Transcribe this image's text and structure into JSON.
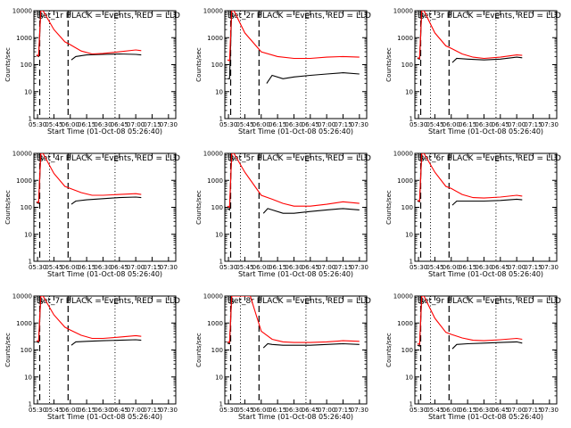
{
  "colors": {
    "events": "#000000",
    "lld": "#ff0000",
    "axis": "#000000",
    "background": "#ffffff"
  },
  "chart_data": {
    "type": "line",
    "yscale": "log",
    "ylim": [
      1,
      10000
    ],
    "xlim": [
      "05:26:40",
      "07:36:40"
    ],
    "xlabel": "Start Time (01-Oct-08 05:26:40)",
    "ylabel": "Counts/sec",
    "xticks": [
      "05:30",
      "05:45",
      "06:00",
      "06:15",
      "06:30",
      "06:45",
      "07:00",
      "07:15",
      "07:30"
    ],
    "yticks": [
      "1",
      "10",
      "100",
      "1000",
      "10000"
    ],
    "legend_text": "BLACK = Events, RED = LLD",
    "markers": {
      "dashed": [
        "05:32",
        "05:58"
      ],
      "dotted": [
        "05:41",
        "06:41"
      ],
      "labels": [
        {
          "text": "S",
          "at": "05:33"
        },
        {
          "text": "E",
          "at": "06:42"
        }
      ]
    },
    "panels": [
      {
        "title": "Det_1r BLACK = Events, RED = LLD",
        "series": [
          {
            "name": "Events",
            "color": "#000000",
            "x": [
              "05:29",
              "05:31",
              "05:33",
              "05:35",
              "06:00",
              "06:01",
              "06:05",
              "06:15",
              "06:30",
              "06:45",
              "07:00",
              "07:05"
            ],
            "y": [
              220,
              200,
              10000,
              10000,
              null,
              150,
              200,
              230,
              240,
              250,
              240,
              230
            ]
          },
          {
            "name": "LLD",
            "color": "#ff0000",
            "x": [
              "05:29",
              "05:31",
              "05:33",
              "05:35",
              "05:45",
              "05:55",
              "06:00",
              "06:10",
              "06:20",
              "06:30",
              "06:45",
              "07:00",
              "07:05"
            ],
            "y": [
              230,
              210,
              10000,
              10000,
              2000,
              700,
              550,
              320,
              250,
              260,
              300,
              350,
              330
            ]
          }
        ]
      },
      {
        "title": "Det_2r BLACK = Events, RED = LLD",
        "series": [
          {
            "name": "Events",
            "color": "#000000",
            "x": [
              "05:29",
              "05:31",
              "05:33",
              "05:35",
              "06:00",
              "06:05",
              "06:10",
              "06:20",
              "06:30",
              "06:45",
              "07:00",
              "07:15",
              "07:30"
            ],
            "y": [
              30,
              30,
              10000,
              10000,
              null,
              20,
              40,
              30,
              35,
              40,
              45,
              50,
              45
            ]
          },
          {
            "name": "LLD",
            "color": "#ff0000",
            "x": [
              "05:29",
              "05:31",
              "05:33",
              "05:35",
              "05:45",
              "06:00",
              "06:15",
              "06:30",
              "06:45",
              "07:00",
              "07:15",
              "07:30"
            ],
            "y": [
              150,
              140,
              10000,
              10000,
              1500,
              300,
              200,
              170,
              170,
              190,
              200,
              190
            ]
          }
        ]
      },
      {
        "title": "Det_3r BLACK = Events, RED = LLD",
        "series": [
          {
            "name": "Events",
            "color": "#000000",
            "x": [
              "05:29",
              "05:31",
              "05:33",
              "05:35",
              "06:00",
              "06:01",
              "06:05",
              "06:15",
              "06:30",
              "06:45",
              "07:00",
              "07:05"
            ],
            "y": [
              170,
              160,
              10000,
              10000,
              null,
              120,
              170,
              160,
              150,
              160,
              190,
              180
            ]
          },
          {
            "name": "LLD",
            "color": "#ff0000",
            "x": [
              "05:29",
              "05:31",
              "05:33",
              "05:35",
              "05:45",
              "05:55",
              "06:00",
              "06:10",
              "06:20",
              "06:30",
              "06:45",
              "07:00",
              "07:05"
            ],
            "y": [
              180,
              170,
              10000,
              10000,
              1500,
              500,
              400,
              250,
              190,
              170,
              190,
              230,
              220
            ]
          }
        ]
      },
      {
        "title": "Det_4r BLACK = Events, RED = LLD",
        "series": [
          {
            "name": "Events",
            "color": "#000000",
            "x": [
              "05:29",
              "05:31",
              "05:33",
              "05:35",
              "06:00",
              "06:01",
              "06:05",
              "06:15",
              "06:30",
              "06:45",
              "07:00",
              "07:05"
            ],
            "y": [
              150,
              140,
              10000,
              10000,
              null,
              130,
              170,
              190,
              210,
              230,
              240,
              230
            ]
          },
          {
            "name": "LLD",
            "color": "#ff0000",
            "x": [
              "05:29",
              "05:31",
              "05:33",
              "05:35",
              "05:45",
              "05:55",
              "06:00",
              "06:10",
              "06:20",
              "06:30",
              "06:45",
              "07:00",
              "07:05"
            ],
            "y": [
              160,
              150,
              10000,
              10000,
              1800,
              600,
              500,
              350,
              280,
              280,
              300,
              320,
              300
            ]
          }
        ]
      },
      {
        "title": "Det_5r BLACK = Events, RED = LLD",
        "series": [
          {
            "name": "Events",
            "color": "#000000",
            "x": [
              "05:29",
              "05:31",
              "05:33",
              "05:35",
              "06:00",
              "06:02",
              "06:06",
              "06:10",
              "06:20",
              "06:30",
              "06:45",
              "07:00",
              "07:15",
              "07:30"
            ],
            "y": [
              90,
              80,
              10000,
              10000,
              null,
              60,
              90,
              80,
              60,
              60,
              70,
              80,
              90,
              80
            ]
          },
          {
            "name": "LLD",
            "color": "#ff0000",
            "x": [
              "05:29",
              "05:31",
              "05:33",
              "05:35",
              "05:45",
              "06:00",
              "06:10",
              "06:20",
              "06:30",
              "06:45",
              "07:00",
              "07:15",
              "07:30"
            ],
            "y": [
              110,
              100,
              10000,
              10000,
              2000,
              280,
              200,
              140,
              110,
              110,
              130,
              160,
              140
            ]
          }
        ]
      },
      {
        "title": "Det_6r BLACK = Events, RED = LLD",
        "series": [
          {
            "name": "Events",
            "color": "#000000",
            "x": [
              "05:29",
              "05:31",
              "05:33",
              "05:35",
              "06:00",
              "06:01",
              "06:05",
              "06:15",
              "06:30",
              "06:45",
              "07:00",
              "07:05"
            ],
            "y": [
              170,
              160,
              10000,
              10000,
              null,
              120,
              170,
              170,
              170,
              180,
              200,
              190
            ]
          },
          {
            "name": "LLD",
            "color": "#ff0000",
            "x": [
              "05:29",
              "05:31",
              "05:33",
              "05:35",
              "05:45",
              "05:55",
              "06:00",
              "06:10",
              "06:20",
              "06:30",
              "06:45",
              "07:00",
              "07:05"
            ],
            "y": [
              180,
              170,
              10000,
              10000,
              2000,
              600,
              500,
              300,
              230,
              220,
              240,
              280,
              260
            ]
          }
        ]
      },
      {
        "title": "Det_7r BLACK = Events, RED = LLD",
        "series": [
          {
            "name": "Events",
            "color": "#000000",
            "x": [
              "05:29",
              "05:31",
              "05:33",
              "05:35",
              "06:00",
              "06:01",
              "06:05",
              "06:15",
              "06:30",
              "06:45",
              "07:00",
              "07:05"
            ],
            "y": [
              200,
              190,
              10000,
              10000,
              null,
              150,
              200,
              210,
              220,
              230,
              240,
              230
            ]
          },
          {
            "name": "LLD",
            "color": "#ff0000",
            "x": [
              "05:29",
              "05:31",
              "05:33",
              "05:35",
              "05:45",
              "05:55",
              "06:00",
              "06:10",
              "06:20",
              "06:30",
              "06:45",
              "07:00",
              "07:05"
            ],
            "y": [
              220,
              210,
              10000,
              10000,
              2000,
              700,
              550,
              350,
              270,
              270,
              300,
              340,
              320
            ]
          }
        ]
      },
      {
        "title": "Det_8r BLACK = Events, RED = LLD",
        "series": [
          {
            "name": "Events",
            "color": "#000000",
            "x": [
              "05:29",
              "05:31",
              "05:33",
              "05:35",
              "06:00",
              "06:02",
              "06:06",
              "06:10",
              "06:20",
              "06:30",
              "06:45",
              "07:00",
              "07:15",
              "07:30"
            ],
            "y": [
              180,
              170,
              10000,
              10000,
              null,
              120,
              170,
              160,
              150,
              150,
              150,
              160,
              170,
              160
            ]
          },
          {
            "name": "LLD",
            "color": "#ff0000",
            "x": [
              "05:29",
              "05:31",
              "05:33",
              "05:35",
              "05:50",
              "06:00",
              "06:10",
              "06:20",
              "06:30",
              "06:45",
              "07:00",
              "07:15",
              "07:30"
            ],
            "y": [
              200,
              190,
              10000,
              10000,
              10000,
              500,
              250,
              200,
              190,
              190,
              200,
              220,
              210
            ]
          }
        ]
      },
      {
        "title": "Det_9r BLACK = Events, RED = LLD",
        "series": [
          {
            "name": "Events",
            "color": "#000000",
            "x": [
              "05:29",
              "05:31",
              "05:33",
              "05:35",
              "06:00",
              "06:01",
              "06:05",
              "06:15",
              "06:30",
              "06:45",
              "07:00",
              "07:05"
            ],
            "y": [
              150,
              140,
              10000,
              10000,
              null,
              110,
              160,
              170,
              180,
              190,
              200,
              180
            ]
          },
          {
            "name": "LLD",
            "color": "#ff0000",
            "x": [
              "05:29",
              "05:31",
              "05:33",
              "05:35",
              "05:45",
              "05:55",
              "06:00",
              "06:10",
              "06:20",
              "06:30",
              "06:45",
              "07:00",
              "07:05"
            ],
            "y": [
              170,
              160,
              10000,
              10000,
              1500,
              450,
              380,
              280,
              230,
              220,
              240,
              270,
              250
            ]
          }
        ]
      }
    ]
  }
}
